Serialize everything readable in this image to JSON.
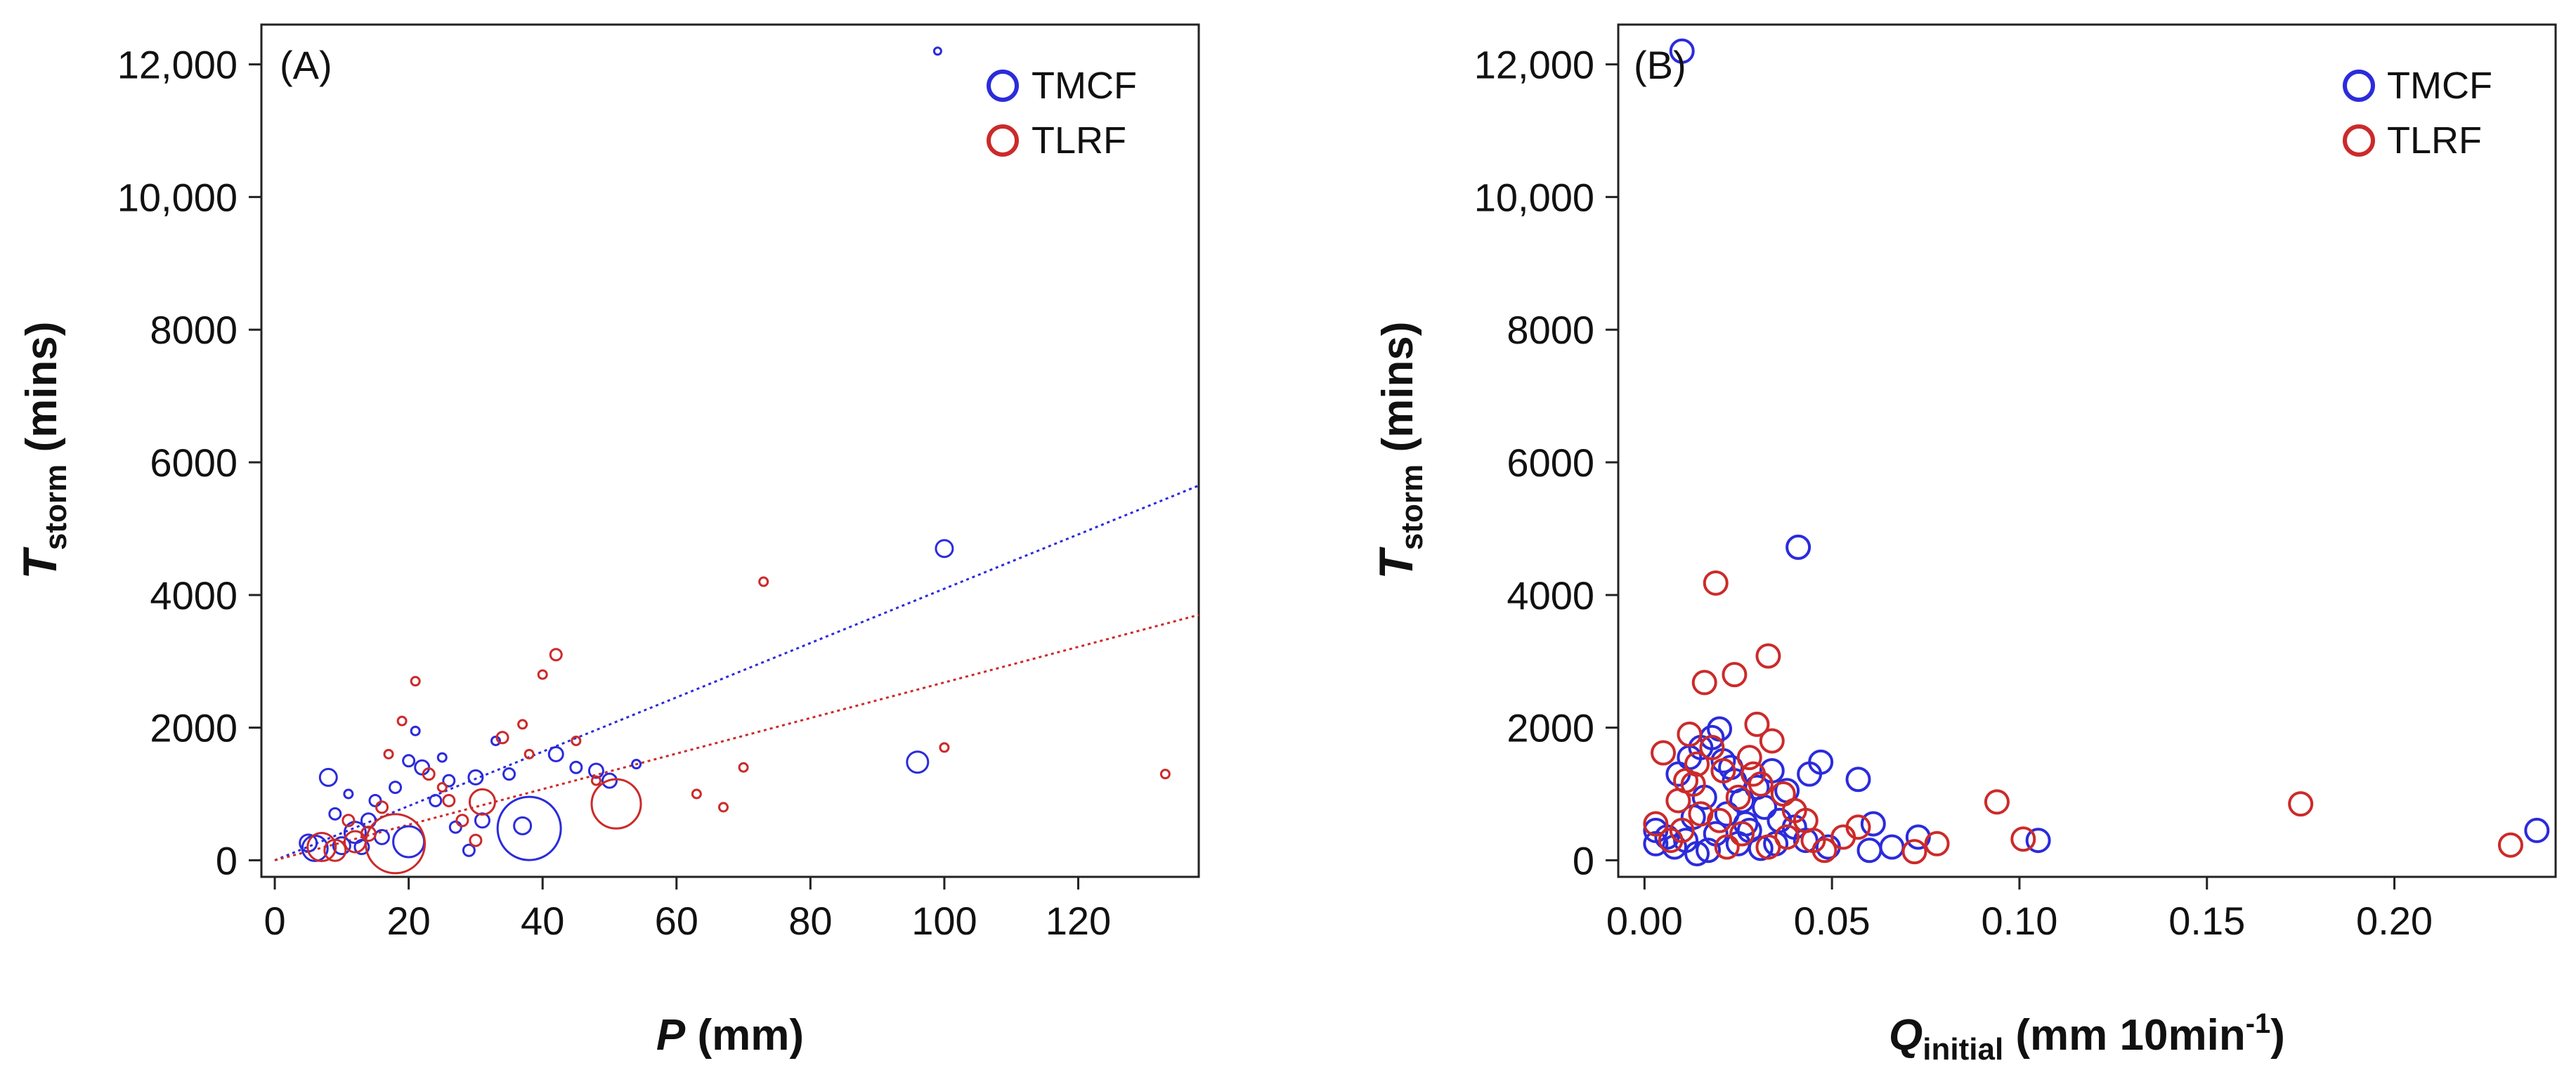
{
  "colors": {
    "tmcf": "#2b2bdc",
    "tlrf": "#cc2a2a"
  },
  "chart_data": [
    {
      "type": "scatter",
      "panel_label": "(A)",
      "xlabel": {
        "main": "P",
        "rest": " (mm)"
      },
      "ylabel": {
        "main": "T",
        "sub": "storm",
        "rest": " (mins)"
      },
      "xlim": [
        -2,
        138
      ],
      "ylim": [
        -250,
        12600
      ],
      "xticks": [
        0,
        20,
        40,
        60,
        80,
        100,
        120
      ],
      "xtick_labels": [
        "0",
        "20",
        "40",
        "60",
        "80",
        "100",
        "120"
      ],
      "yticks": [
        0,
        2000,
        4000,
        6000,
        8000,
        10000,
        12000
      ],
      "ytick_labels": [
        "0",
        "2000",
        "4000",
        "6000",
        "8000",
        "10,000",
        "12,000"
      ],
      "legend": [
        {
          "name": "TMCF",
          "color": "#2b2bdc"
        },
        {
          "name": "TLRF",
          "color": "#cc2a2a"
        }
      ],
      "legend_position": "top-right",
      "marker_size_note": "circle radius varies per event",
      "series": [
        {
          "name": "TMCF",
          "color": "#2b2bdc",
          "points": [
            {
              "x": 99,
              "y": 12200,
              "s": 0.5
            },
            {
              "x": 100,
              "y": 4700,
              "s": 1.2
            },
            {
              "x": 96,
              "y": 1480,
              "s": 1.5
            },
            {
              "x": 38,
              "y": 480,
              "s": 4.5
            },
            {
              "x": 37,
              "y": 520,
              "s": 1.2
            },
            {
              "x": 20,
              "y": 280,
              "s": 2.2
            },
            {
              "x": 8,
              "y": 1250,
              "s": 1.2
            },
            {
              "x": 12,
              "y": 420,
              "s": 1.5
            },
            {
              "x": 10,
              "y": 220,
              "s": 1.2
            },
            {
              "x": 6,
              "y": 180,
              "s": 1.8
            },
            {
              "x": 5,
              "y": 260,
              "s": 1.2
            },
            {
              "x": 14,
              "y": 600,
              "s": 1.0
            },
            {
              "x": 15,
              "y": 900,
              "s": 0.8
            },
            {
              "x": 16,
              "y": 350,
              "s": 1.0
            },
            {
              "x": 18,
              "y": 1100,
              "s": 0.8
            },
            {
              "x": 20,
              "y": 1500,
              "s": 0.8
            },
            {
              "x": 21,
              "y": 1950,
              "s": 0.6
            },
            {
              "x": 22,
              "y": 1400,
              "s": 1.0
            },
            {
              "x": 24,
              "y": 900,
              "s": 0.8
            },
            {
              "x": 25,
              "y": 1550,
              "s": 0.6
            },
            {
              "x": 26,
              "y": 1200,
              "s": 0.8
            },
            {
              "x": 27,
              "y": 500,
              "s": 0.8
            },
            {
              "x": 29,
              "y": 150,
              "s": 0.8
            },
            {
              "x": 30,
              "y": 1250,
              "s": 1.0
            },
            {
              "x": 31,
              "y": 600,
              "s": 1.0
            },
            {
              "x": 33,
              "y": 1800,
              "s": 0.6
            },
            {
              "x": 35,
              "y": 1300,
              "s": 0.8
            },
            {
              "x": 42,
              "y": 1600,
              "s": 1.0
            },
            {
              "x": 45,
              "y": 1400,
              "s": 0.8
            },
            {
              "x": 48,
              "y": 1350,
              "s": 1.0
            },
            {
              "x": 50,
              "y": 1200,
              "s": 1.0
            },
            {
              "x": 54,
              "y": 1450,
              "s": 0.6
            },
            {
              "x": 9,
              "y": 700,
              "s": 0.8
            },
            {
              "x": 11,
              "y": 1000,
              "s": 0.6
            },
            {
              "x": 13,
              "y": 200,
              "s": 1.0
            }
          ]
        },
        {
          "name": "TLRF",
          "color": "#cc2a2a",
          "points": [
            {
              "x": 18,
              "y": 250,
              "s": 4.2
            },
            {
              "x": 51,
              "y": 850,
              "s": 3.5
            },
            {
              "x": 31,
              "y": 880,
              "s": 1.8
            },
            {
              "x": 7,
              "y": 200,
              "s": 2.0
            },
            {
              "x": 9,
              "y": 150,
              "s": 1.5
            },
            {
              "x": 12,
              "y": 280,
              "s": 1.5
            },
            {
              "x": 73,
              "y": 4200,
              "s": 0.6
            },
            {
              "x": 42,
              "y": 3100,
              "s": 0.8
            },
            {
              "x": 40,
              "y": 2800,
              "s": 0.6
            },
            {
              "x": 21,
              "y": 2700,
              "s": 0.6
            },
            {
              "x": 19,
              "y": 2100,
              "s": 0.6
            },
            {
              "x": 17,
              "y": 1600,
              "s": 0.6
            },
            {
              "x": 23,
              "y": 1300,
              "s": 0.8
            },
            {
              "x": 25,
              "y": 1100,
              "s": 0.6
            },
            {
              "x": 26,
              "y": 900,
              "s": 0.8
            },
            {
              "x": 34,
              "y": 1850,
              "s": 0.8
            },
            {
              "x": 37,
              "y": 2050,
              "s": 0.6
            },
            {
              "x": 38,
              "y": 1600,
              "s": 0.6
            },
            {
              "x": 45,
              "y": 1800,
              "s": 0.6
            },
            {
              "x": 48,
              "y": 1200,
              "s": 0.6
            },
            {
              "x": 63,
              "y": 1000,
              "s": 0.6
            },
            {
              "x": 67,
              "y": 800,
              "s": 0.6
            },
            {
              "x": 70,
              "y": 1400,
              "s": 0.6
            },
            {
              "x": 100,
              "y": 1700,
              "s": 0.6
            },
            {
              "x": 133,
              "y": 1300,
              "s": 0.6
            },
            {
              "x": 14,
              "y": 400,
              "s": 1.0
            },
            {
              "x": 11,
              "y": 600,
              "s": 0.8
            },
            {
              "x": 16,
              "y": 800,
              "s": 0.8
            },
            {
              "x": 28,
              "y": 600,
              "s": 0.8
            },
            {
              "x": 30,
              "y": 300,
              "s": 0.8
            }
          ]
        }
      ],
      "trendlines": [
        {
          "series": "TMCF",
          "color": "#2b2bdc",
          "x": [
            0,
            138
          ],
          "y": [
            0,
            5650
          ]
        },
        {
          "series": "TLRF",
          "color": "#cc2a2a",
          "x": [
            0,
            138
          ],
          "y": [
            0,
            3700
          ]
        }
      ]
    },
    {
      "type": "scatter",
      "panel_label": "(B)",
      "xlabel": {
        "main": "Q",
        "sub": "initial",
        "rest": " (mm 10min",
        "sup": "-1",
        "tail": ")"
      },
      "ylabel": {
        "main": "T",
        "sub": "storm",
        "rest": " (mins)"
      },
      "xlim": [
        -0.007,
        0.243
      ],
      "ylim": [
        -250,
        12600
      ],
      "xticks": [
        0.0,
        0.05,
        0.1,
        0.15,
        0.2
      ],
      "xtick_labels": [
        "0.00",
        "0.05",
        "0.10",
        "0.15",
        "0.20"
      ],
      "yticks": [
        0,
        2000,
        4000,
        6000,
        8000,
        10000,
        12000
      ],
      "ytick_labels": [
        "0",
        "2000",
        "4000",
        "6000",
        "8000",
        "10,000",
        "12,000"
      ],
      "legend": [
        {
          "name": "TMCF",
          "color": "#2b2bdc"
        },
        {
          "name": "TLRF",
          "color": "#cc2a2a"
        }
      ],
      "legend_position": "top-right",
      "series": [
        {
          "name": "TMCF",
          "color": "#2b2bdc",
          "points": [
            {
              "x": 0.01,
              "y": 12200
            },
            {
              "x": 0.041,
              "y": 4720
            },
            {
              "x": 0.02,
              "y": 1980
            },
            {
              "x": 0.018,
              "y": 1850
            },
            {
              "x": 0.015,
              "y": 1700
            },
            {
              "x": 0.012,
              "y": 1550
            },
            {
              "x": 0.021,
              "y": 1500
            },
            {
              "x": 0.047,
              "y": 1480
            },
            {
              "x": 0.044,
              "y": 1300
            },
            {
              "x": 0.034,
              "y": 1350
            },
            {
              "x": 0.057,
              "y": 1220
            },
            {
              "x": 0.009,
              "y": 1300
            },
            {
              "x": 0.024,
              "y": 1200
            },
            {
              "x": 0.03,
              "y": 1100
            },
            {
              "x": 0.038,
              "y": 1050
            },
            {
              "x": 0.016,
              "y": 950
            },
            {
              "x": 0.026,
              "y": 900
            },
            {
              "x": 0.032,
              "y": 800
            },
            {
              "x": 0.022,
              "y": 700
            },
            {
              "x": 0.013,
              "y": 650
            },
            {
              "x": 0.036,
              "y": 600
            },
            {
              "x": 0.061,
              "y": 550
            },
            {
              "x": 0.04,
              "y": 500
            },
            {
              "x": 0.028,
              "y": 450
            },
            {
              "x": 0.019,
              "y": 400
            },
            {
              "x": 0.003,
              "y": 450
            },
            {
              "x": 0.006,
              "y": 350
            },
            {
              "x": 0.011,
              "y": 300
            },
            {
              "x": 0.025,
              "y": 250
            },
            {
              "x": 0.043,
              "y": 300
            },
            {
              "x": 0.073,
              "y": 350
            },
            {
              "x": 0.105,
              "y": 300
            },
            {
              "x": 0.238,
              "y": 450
            },
            {
              "x": 0.066,
              "y": 200
            },
            {
              "x": 0.06,
              "y": 150
            },
            {
              "x": 0.031,
              "y": 180
            },
            {
              "x": 0.017,
              "y": 150
            },
            {
              "x": 0.008,
              "y": 200
            },
            {
              "x": 0.014,
              "y": 100
            },
            {
              "x": 0.035,
              "y": 250
            },
            {
              "x": 0.049,
              "y": 200
            },
            {
              "x": 0.003,
              "y": 250
            },
            {
              "x": 0.023,
              "y": 1400
            },
            {
              "x": 0.027,
              "y": 550
            }
          ]
        },
        {
          "name": "TLRF",
          "color": "#cc2a2a",
          "points": [
            {
              "x": 0.019,
              "y": 4180
            },
            {
              "x": 0.033,
              "y": 3080
            },
            {
              "x": 0.016,
              "y": 2680
            },
            {
              "x": 0.024,
              "y": 2800
            },
            {
              "x": 0.03,
              "y": 2050
            },
            {
              "x": 0.012,
              "y": 1900
            },
            {
              "x": 0.034,
              "y": 1800
            },
            {
              "x": 0.018,
              "y": 1700
            },
            {
              "x": 0.005,
              "y": 1620
            },
            {
              "x": 0.028,
              "y": 1550
            },
            {
              "x": 0.014,
              "y": 1450
            },
            {
              "x": 0.021,
              "y": 1350
            },
            {
              "x": 0.011,
              "y": 1200
            },
            {
              "x": 0.031,
              "y": 1150
            },
            {
              "x": 0.037,
              "y": 1000
            },
            {
              "x": 0.025,
              "y": 950
            },
            {
              "x": 0.009,
              "y": 900
            },
            {
              "x": 0.094,
              "y": 880
            },
            {
              "x": 0.175,
              "y": 850
            },
            {
              "x": 0.04,
              "y": 750
            },
            {
              "x": 0.015,
              "y": 700
            },
            {
              "x": 0.02,
              "y": 600
            },
            {
              "x": 0.057,
              "y": 500
            },
            {
              "x": 0.053,
              "y": 350
            },
            {
              "x": 0.045,
              "y": 300
            },
            {
              "x": 0.078,
              "y": 250
            },
            {
              "x": 0.101,
              "y": 320
            },
            {
              "x": 0.231,
              "y": 230
            },
            {
              "x": 0.003,
              "y": 550
            },
            {
              "x": 0.007,
              "y": 300
            },
            {
              "x": 0.026,
              "y": 400
            },
            {
              "x": 0.033,
              "y": 200
            },
            {
              "x": 0.048,
              "y": 150
            },
            {
              "x": 0.072,
              "y": 130
            },
            {
              "x": 0.038,
              "y": 350
            },
            {
              "x": 0.013,
              "y": 1150
            },
            {
              "x": 0.029,
              "y": 1300
            },
            {
              "x": 0.022,
              "y": 200
            },
            {
              "x": 0.01,
              "y": 450
            },
            {
              "x": 0.043,
              "y": 600
            }
          ]
        }
      ]
    }
  ]
}
